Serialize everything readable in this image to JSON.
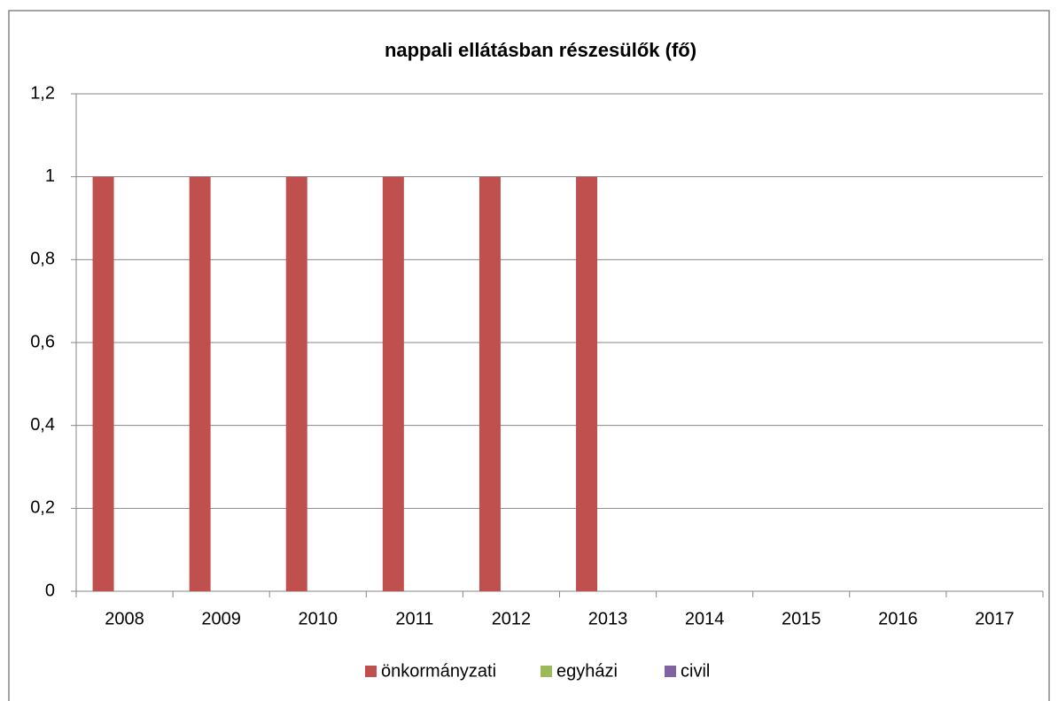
{
  "chart_data": {
    "type": "bar",
    "title": "nappali ellátásban részesülők (fő)",
    "categories": [
      "2008",
      "2009",
      "2010",
      "2011",
      "2012",
      "2013",
      "2014",
      "2015",
      "2016",
      "2017"
    ],
    "series": [
      {
        "name": "önkormányzati",
        "color": "#c0504d",
        "values": [
          1,
          1,
          1,
          1,
          1,
          1,
          0,
          0,
          0,
          0
        ]
      },
      {
        "name": "egyházi",
        "color": "#9bbb59",
        "values": [
          0,
          0,
          0,
          0,
          0,
          0,
          0,
          0,
          0,
          0
        ]
      },
      {
        "name": "civil",
        "color": "#8064a2",
        "values": [
          0,
          0,
          0,
          0,
          0,
          0,
          0,
          0,
          0,
          0
        ]
      }
    ],
    "ylim": [
      0,
      1.2
    ],
    "yticks": [
      0,
      {
        "value": 0.2,
        "label": "0,2"
      },
      {
        "value": 0.4,
        "label": "0,4"
      },
      {
        "value": 0.6,
        "label": "0,6"
      },
      {
        "value": 0.8,
        "label": "0,8"
      },
      1,
      {
        "value": 1.2,
        "label": "1,2"
      }
    ],
    "grid": true,
    "legend": "bottom"
  }
}
